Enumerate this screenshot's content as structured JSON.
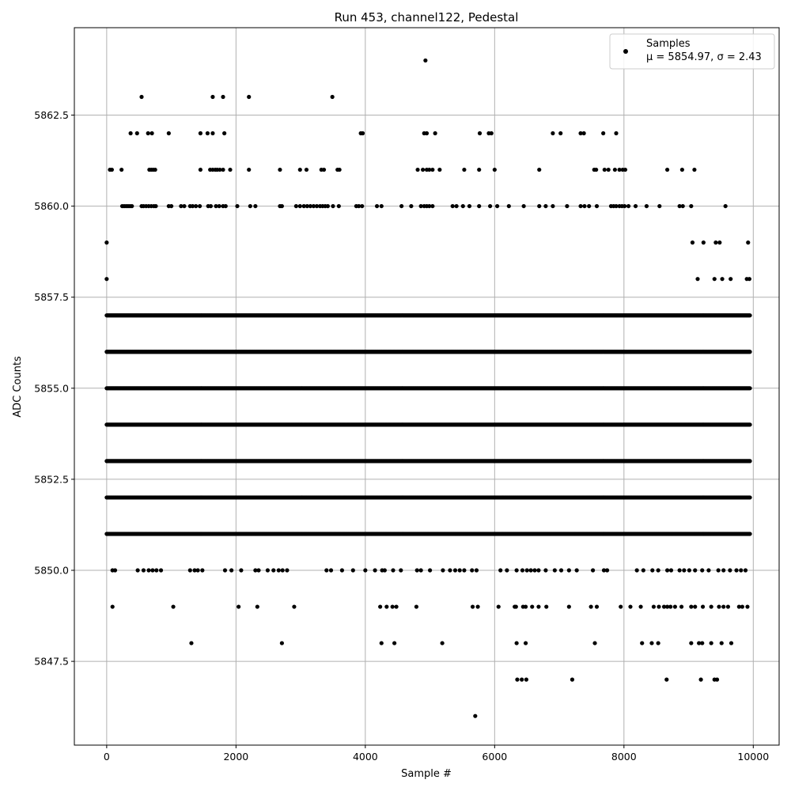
{
  "chart_data": {
    "type": "scatter",
    "title": "Run 453, channel122, Pedestal",
    "xlabel": "Sample #",
    "ylabel": "ADC Counts",
    "xlim": [
      -500,
      10400
    ],
    "ylim": [
      5845.2,
      5864.9
    ],
    "xticks": [
      0,
      2000,
      4000,
      6000,
      8000,
      10000
    ],
    "xtick_labels": [
      "0",
      "2000",
      "4000",
      "6000",
      "8000",
      "10000"
    ],
    "yticks": [
      5847.5,
      5850.0,
      5852.5,
      5855.0,
      5857.5,
      5860.0,
      5862.5
    ],
    "ytick_labels": [
      "5847.5",
      "5850.0",
      "5852.5",
      "5855.0",
      "5857.5",
      "5860.0",
      "5862.5"
    ],
    "grid": true,
    "legend_position": "top-right",
    "marker_color": "#000000",
    "grid_color": "#b0b0b0",
    "series": [
      {
        "name": "Samples",
        "stats_label": "μ = 5854.97, σ = 2.43",
        "x_range": [
          0,
          9950
        ],
        "levels": [
          {
            "y": 5864,
            "x": [
              4930
            ]
          },
          {
            "y": 5863,
            "x": [
              540,
              1640,
              1800,
              2200,
              3490
            ]
          },
          {
            "y": 5862,
            "x": [
              370,
              470,
              640,
              700,
              960,
              1450,
              1560,
              1640,
              1820,
              3930,
              3960,
              4910,
              4950,
              5080,
              5770,
              5910,
              5950,
              6900,
              7020,
              7330,
              7380,
              7680,
              7880
            ]
          },
          {
            "y": 5861,
            "x": [
              50,
              80,
              230,
              660,
              690,
              720,
              750,
              1450,
              1600,
              1640,
              1680,
              1710,
              1750,
              1800,
              1910,
              2200,
              2680,
              2990,
              3090,
              3320,
              3360,
              3570,
              3600,
              4810,
              4890,
              4950,
              4990,
              5040,
              5150,
              5530,
              5760,
              6000,
              6690,
              7540,
              7570,
              7700,
              7760,
              7860,
              7930,
              7980,
              8020,
              8670,
              8900,
              9090
            ]
          },
          {
            "y": 5860,
            "x": [
              240,
              270,
              300,
              330,
              360,
              390,
              540,
              570,
              610,
              650,
              690,
              730,
              760,
              960,
              1000,
              1150,
              1200,
              1290,
              1330,
              1380,
              1440,
              1570,
              1610,
              1690,
              1740,
              1800,
              1840,
              2020,
              2220,
              2300,
              2680,
              2710,
              2930,
              2990,
              3050,
              3100,
              3150,
              3200,
              3250,
              3300,
              3340,
              3380,
              3420,
              3500,
              3590,
              3860,
              3900,
              3950,
              4180,
              4250,
              4560,
              4710,
              4860,
              4910,
              4950,
              4990,
              5040,
              5350,
              5410,
              5510,
              5610,
              5760,
              5930,
              6040,
              6220,
              6450,
              6690,
              6790,
              6900,
              7120,
              7330,
              7390,
              7460,
              7580,
              7800,
              7840,
              7880,
              7930,
              7970,
              8010,
              8070,
              8180,
              8350,
              8550,
              8860,
              8910,
              9040,
              9570
            ]
          },
          {
            "y": 5859,
            "x": [
              0,
              9060,
              9230,
              9420,
              9480,
              9920
            ]
          },
          {
            "y": 5858,
            "x": [
              0,
              9140,
              9400,
              9520,
              9650,
              9900,
              9940
            ]
          },
          {
            "y": 5857,
            "x": [
              0,
              9950
            ]
          },
          {
            "y": 5856,
            "x": [
              0,
              9950
            ]
          },
          {
            "y": 5855,
            "x": [
              0,
              9950
            ]
          },
          {
            "y": 5854,
            "x": [
              0,
              9950
            ]
          },
          {
            "y": 5853,
            "x": [
              0,
              9950
            ]
          },
          {
            "y": 5852,
            "x": [
              0,
              9950
            ]
          },
          {
            "y": 5851,
            "x": [
              0,
              9950
            ]
          },
          {
            "y": 5850,
            "x": [
              90,
              130,
              480,
              570,
              650,
              710,
              770,
              840,
              1290,
              1360,
              1410,
              1480,
              1830,
              1930,
              2080,
              2300,
              2350,
              2490,
              2580,
              2660,
              2720,
              2790,
              3400,
              3470,
              3640,
              3810,
              4000,
              4150,
              4260,
              4300,
              4430,
              4550,
              4800,
              4860,
              5000,
              5200,
              5310,
              5390,
              5460,
              5530,
              5650,
              5720,
              6090,
              6190,
              6340,
              6430,
              6500,
              6560,
              6620,
              6680,
              6790,
              6930,
              7030,
              7150,
              7270,
              7520,
              7690,
              7740,
              8200,
              8300,
              8440,
              8530,
              8670,
              8730,
              8860,
              8930,
              9010,
              9100,
              9210,
              9310,
              9460,
              9540,
              9640,
              9740,
              9810,
              9880
            ]
          },
          {
            "y": 5849,
            "x": [
              90,
              1030,
              2040,
              2330,
              2900,
              4230,
              4330,
              4420,
              4480,
              4790,
              5660,
              5740,
              6060,
              6310,
              6330,
              6440,
              6480,
              6580,
              6680,
              6800,
              7150,
              7490,
              7580,
              7950,
              8100,
              8260,
              8460,
              8540,
              8620,
              8670,
              8720,
              8790,
              8890,
              9040,
              9100,
              9220,
              9350,
              9470,
              9540,
              9610,
              9780,
              9830,
              9910
            ]
          },
          {
            "y": 5848,
            "x": [
              1310,
              2710,
              4250,
              4450,
              5190,
              6340,
              6480,
              7550,
              8280,
              8430,
              8530,
              9040,
              9160,
              9210,
              9350,
              9510,
              9660
            ]
          },
          {
            "y": 5847,
            "x": [
              6350,
              6420,
              6490,
              7200,
              8660,
              9190,
              9400,
              9440
            ]
          },
          {
            "y": 5846,
            "x": [
              5700
            ]
          }
        ]
      }
    ]
  }
}
